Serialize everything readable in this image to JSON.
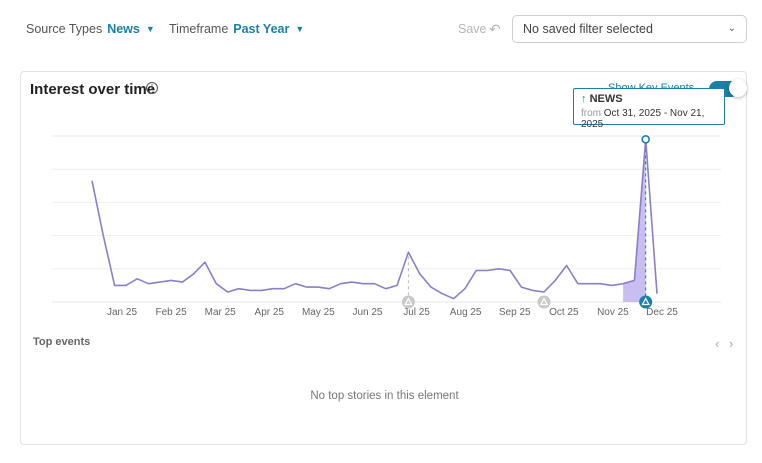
{
  "filters": {
    "source_types": {
      "label": "Source Types",
      "value": "News"
    },
    "timeframe": {
      "label": "Timeframe",
      "value": "Past Year"
    },
    "save_label": "Save",
    "saved_filter_placeholder": "No saved filter selected"
  },
  "card": {
    "title": "Interest over time",
    "key_events_label": "Show Key Events",
    "key_events_on": true,
    "top_events_label": "Top events",
    "empty_message": "No top stories in this element"
  },
  "tooltip": {
    "title": "NEWS",
    "from_label": "from",
    "range": "Oct 31, 2025 - Nov 21, 2025"
  },
  "colors": {
    "accent": "#1b7fa6",
    "line": "#8a7fc9",
    "area": "#b6a8ec"
  },
  "chart_data": {
    "type": "line",
    "x_tick_labels": [
      "Jan 25",
      "Feb 25",
      "Mar 25",
      "Apr 25",
      "May 25",
      "Jun 25",
      "Jul 25",
      "Aug 25",
      "Sep 25",
      "Oct 25",
      "Nov 25",
      "Dec 25"
    ],
    "ylim": [
      0,
      100
    ],
    "grid": true,
    "series": [
      {
        "values": [
          73,
          40,
          10,
          10,
          14,
          11,
          12,
          13,
          12,
          17,
          24,
          11,
          6,
          8,
          7,
          7,
          8,
          8,
          11,
          9,
          9,
          8,
          11,
          12,
          11,
          11,
          8,
          10,
          30,
          17,
          9,
          5,
          2,
          8,
          19,
          19,
          20,
          19,
          9,
          7,
          6,
          13,
          22,
          11,
          11,
          11,
          10,
          11,
          13,
          98,
          5
        ]
      }
    ],
    "highlight_index": 49,
    "key_event_markers": [
      28,
      40,
      49
    ]
  }
}
